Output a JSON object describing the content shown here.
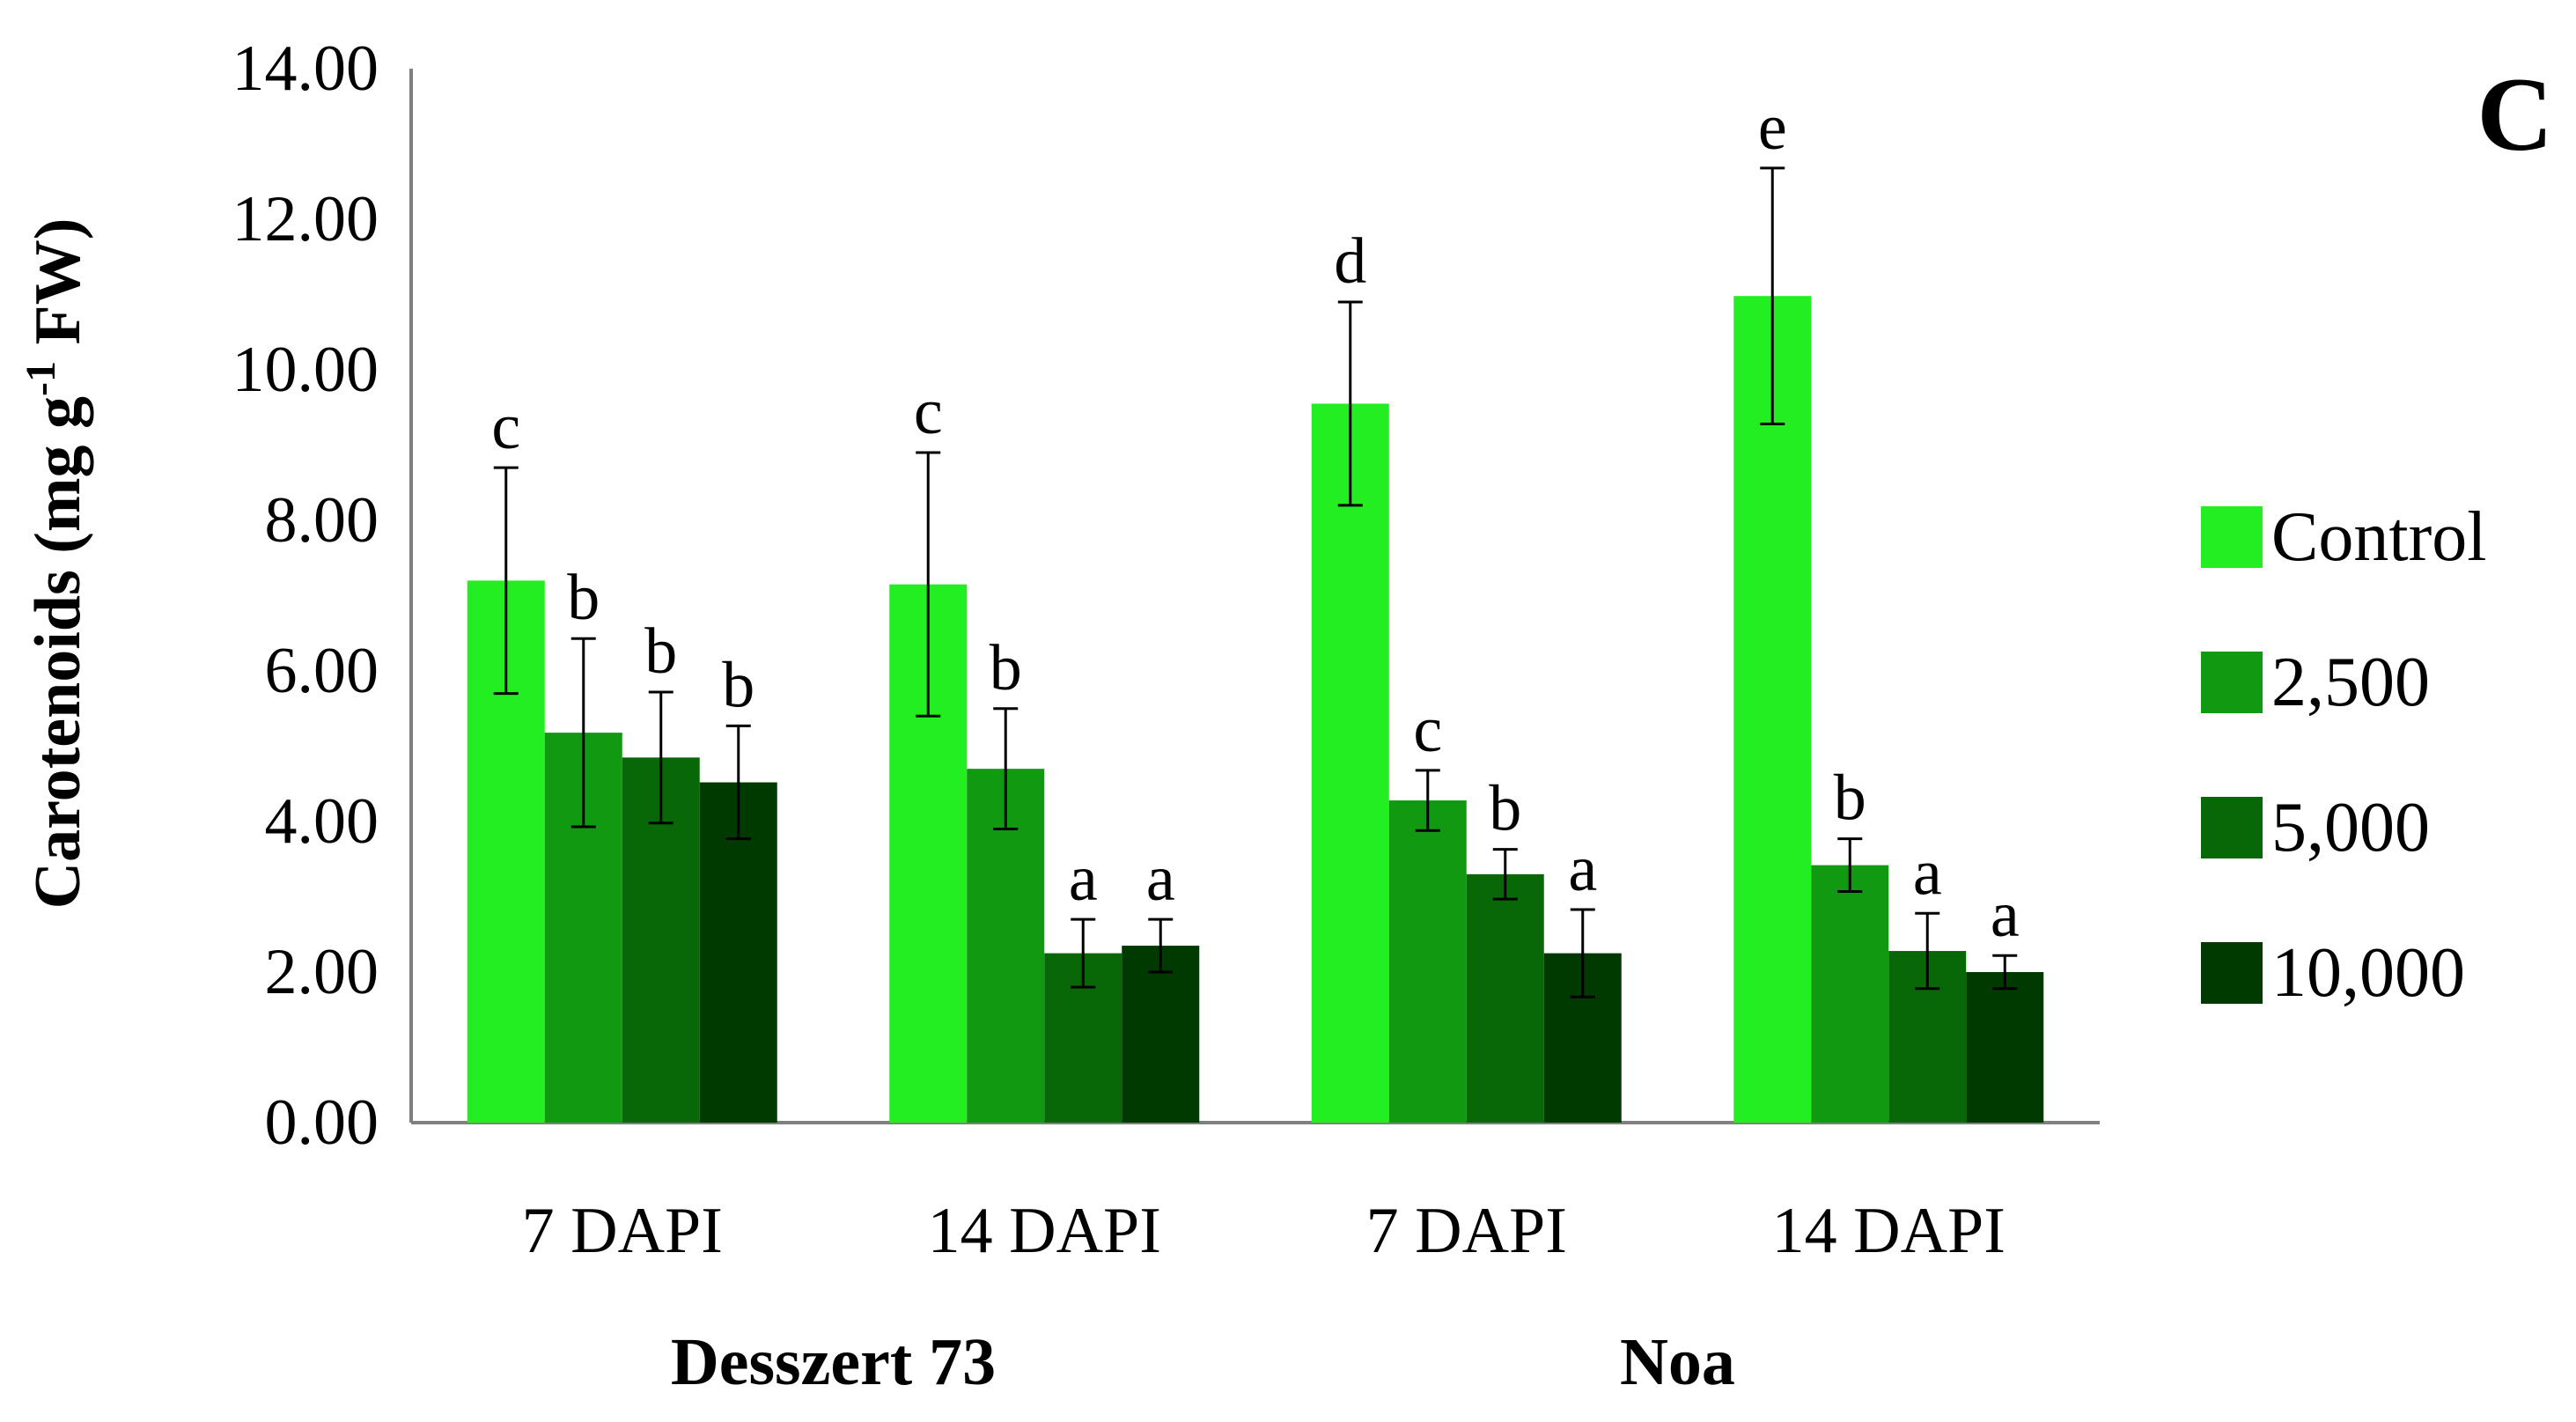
{
  "panel_label": "C",
  "chart_data": {
    "type": "bar",
    "title": "",
    "xlabel": "",
    "ylabel_parts": {
      "base": "Carotenoids (mg g",
      "sup": "-1",
      "tail": " FW)"
    },
    "ylim": [
      0,
      14
    ],
    "yticks": [
      "0.00",
      "2.00",
      "4.00",
      "6.00",
      "8.00",
      "10.00",
      "12.00",
      "14.00"
    ],
    "grid": false,
    "legend_position": "right",
    "categories": [
      "7 DAPI",
      "14 DAPI",
      "7 DAPI",
      "14 DAPI"
    ],
    "groups": [
      {
        "label": "Desszert 73",
        "span": [
          0,
          1
        ]
      },
      {
        "label": "Noa",
        "span": [
          2,
          3
        ]
      }
    ],
    "series": [
      {
        "name": "Control",
        "color": "#22ee22",
        "values": [
          7.2,
          7.15,
          9.55,
          10.98
        ],
        "errors": [
          1.5,
          1.75,
          1.35,
          1.7
        ],
        "letters": [
          "c",
          "c",
          "d",
          "e"
        ]
      },
      {
        "name": "2,500",
        "color": "#119a11",
        "values": [
          5.18,
          4.7,
          4.28,
          3.42
        ],
        "errors": [
          1.25,
          0.8,
          0.4,
          0.35
        ],
        "letters": [
          "b",
          "b",
          "c",
          "b"
        ]
      },
      {
        "name": "5,000",
        "color": "#086808",
        "values": [
          4.85,
          2.25,
          3.3,
          2.28
        ],
        "errors": [
          0.87,
          0.45,
          0.33,
          0.5
        ],
        "letters": [
          "b",
          "a",
          "b",
          "a"
        ]
      },
      {
        "name": "10,000",
        "color": "#003a00",
        "values": [
          4.52,
          2.35,
          2.25,
          2.0
        ],
        "errors": [
          0.75,
          0.35,
          0.58,
          0.22
        ],
        "letters": [
          "b",
          "a",
          "a",
          "a"
        ]
      }
    ]
  }
}
